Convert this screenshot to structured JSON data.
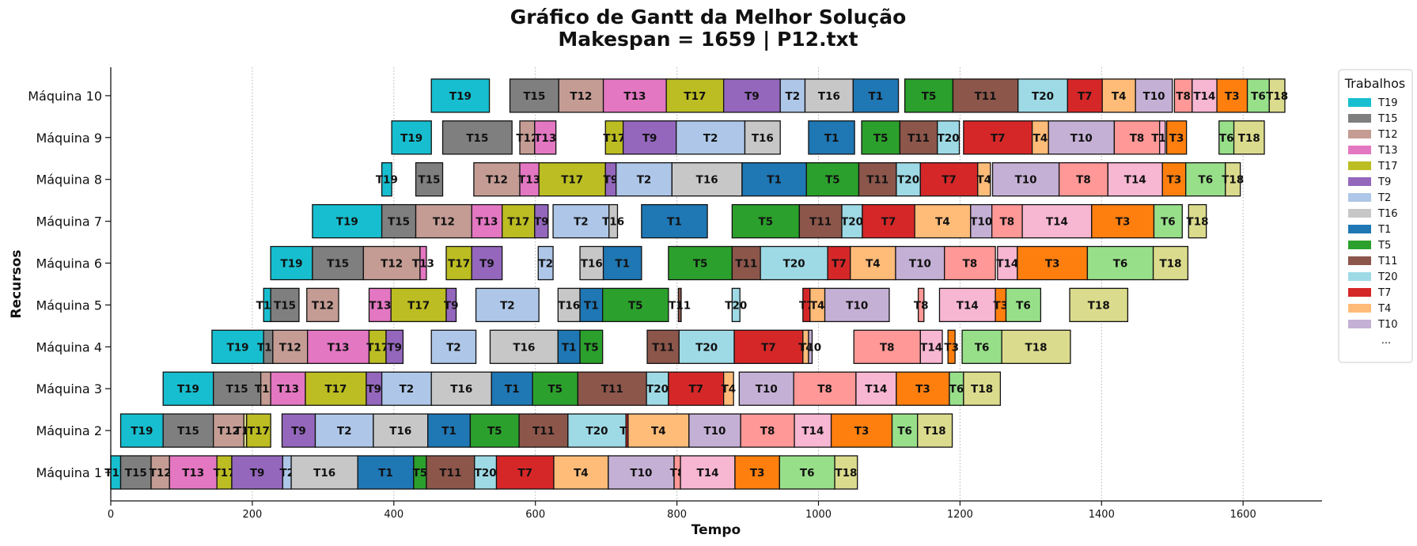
{
  "chart_data": {
    "type": "gantt",
    "title": "Gráfico de Gantt da Melhor Solução",
    "subtitle": "Makespan = 1659 | P12.txt",
    "xlabel": "Tempo",
    "ylabel": "Recursos",
    "xlim": [
      0,
      1710
    ],
    "x_ticks": [
      0,
      200,
      400,
      600,
      800,
      1000,
      1200,
      1400,
      1600
    ],
    "grid": "x dotted",
    "legend": {
      "title": "Trabalhos",
      "placement": "right",
      "entries": [
        "T19",
        "T15",
        "T12",
        "T13",
        "T17",
        "T9",
        "T2",
        "T16",
        "T1",
        "T5",
        "T11",
        "T20",
        "T7",
        "T4",
        "T10"
      ],
      "more": "..."
    },
    "colors": {
      "T19": "#17becf",
      "T15": "#7f7f7f",
      "T12": "#c49c94",
      "T13": "#e377c2",
      "T17": "#bcbd22",
      "T9": "#9467bd",
      "T2": "#aec7e8",
      "T16": "#c7c7c7",
      "T1": "#1f77b4",
      "T5": "#2ca02c",
      "T11": "#8c564b",
      "T20": "#9edae5",
      "T7": "#d62728",
      "T4": "#ffbb78",
      "T10": "#c5b0d5",
      "T8": "#ff9896",
      "T14": "#f7b6d2",
      "T3": "#ff7f0e",
      "T6": "#98df8a",
      "T18": "#dbdb8d"
    },
    "machines": [
      {
        "name": "Máquina 1",
        "tasks": [
          [
            "T19",
            0,
            14
          ],
          [
            "T15",
            14,
            57
          ],
          [
            "T12",
            57,
            83
          ],
          [
            "T13",
            83,
            150
          ],
          [
            "T17",
            150,
            171
          ],
          [
            "T9",
            171,
            243
          ],
          [
            "T2",
            243,
            255
          ],
          [
            "T16",
            255,
            349
          ],
          [
            "T1",
            349,
            428
          ],
          [
            "T5",
            428,
            446
          ],
          [
            "T11",
            446,
            514
          ],
          [
            "T20",
            514,
            545
          ],
          [
            "T7",
            545,
            626
          ],
          [
            "T4",
            626,
            703
          ],
          [
            "T10",
            703,
            796
          ],
          [
            "T8",
            796,
            805
          ],
          [
            "T14",
            805,
            882
          ],
          [
            "T3",
            882,
            945
          ],
          [
            "T6",
            945,
            1023
          ],
          [
            "T18",
            1023,
            1055
          ]
        ]
      },
      {
        "name": "Máquina 2",
        "tasks": [
          [
            "T19",
            14,
            74
          ],
          [
            "T15",
            74,
            145
          ],
          [
            "T12",
            145,
            188
          ],
          [
            "T18",
            188,
            192
          ],
          [
            "T17",
            192,
            226
          ],
          [
            "T9",
            242,
            289
          ],
          [
            "T2",
            289,
            371
          ],
          [
            "T16",
            371,
            448
          ],
          [
            "T1",
            448,
            508
          ],
          [
            "T5",
            508,
            577
          ],
          [
            "T11",
            577,
            646
          ],
          [
            "T20",
            646,
            728
          ],
          [
            "T7",
            728,
            731
          ],
          [
            "T4",
            731,
            817
          ],
          [
            "T10",
            817,
            890
          ],
          [
            "T8",
            890,
            966
          ],
          [
            "T14",
            966,
            1018
          ],
          [
            "T3",
            1018,
            1104
          ],
          [
            "T6",
            1104,
            1140
          ],
          [
            "T18",
            1140,
            1189
          ]
        ]
      },
      {
        "name": "Máquina 3",
        "tasks": [
          [
            "T19",
            74,
            145
          ],
          [
            "T15",
            145,
            212
          ],
          [
            "T12",
            212,
            226
          ],
          [
            "T13",
            226,
            275
          ],
          [
            "T17",
            275,
            361
          ],
          [
            "T9",
            361,
            383
          ],
          [
            "T2",
            383,
            453
          ],
          [
            "T16",
            453,
            538
          ],
          [
            "T1",
            538,
            596
          ],
          [
            "T5",
            596,
            660
          ],
          [
            "T11",
            660,
            757
          ],
          [
            "T20",
            757,
            788
          ],
          [
            "T7",
            788,
            866
          ],
          [
            "T4",
            866,
            880
          ],
          [
            "T10",
            888,
            965
          ],
          [
            "T8",
            965,
            1053
          ],
          [
            "T14",
            1053,
            1110
          ],
          [
            "T3",
            1110,
            1185
          ],
          [
            "T6",
            1185,
            1205
          ],
          [
            "T18",
            1205,
            1257
          ]
        ]
      },
      {
        "name": "Máquina 4",
        "tasks": [
          [
            "T19",
            143,
            216
          ],
          [
            "T15",
            216,
            229
          ],
          [
            "T12",
            229,
            278
          ],
          [
            "T13",
            278,
            365
          ],
          [
            "T17",
            365,
            389
          ],
          [
            "T9",
            389,
            413
          ],
          [
            "T2",
            453,
            516
          ],
          [
            "T16",
            536,
            632
          ],
          [
            "T1",
            632,
            663
          ],
          [
            "T5",
            663,
            695
          ],
          [
            "T11",
            758,
            803
          ],
          [
            "T20",
            803,
            881
          ],
          [
            "T7",
            881,
            978
          ],
          [
            "T4",
            978,
            986
          ],
          [
            "T10",
            986,
            991
          ],
          [
            "T8",
            1050,
            1144
          ],
          [
            "T14",
            1144,
            1175
          ],
          [
            "T3",
            1183,
            1193
          ],
          [
            "T6",
            1203,
            1259
          ],
          [
            "T18",
            1259,
            1356
          ]
        ]
      },
      {
        "name": "Máquina 5",
        "tasks": [
          [
            "T19",
            216,
            226
          ],
          [
            "T15",
            226,
            266
          ],
          [
            "T12",
            277,
            322
          ],
          [
            "T13",
            365,
            396
          ],
          [
            "T17",
            396,
            474
          ],
          [
            "T9",
            474,
            488
          ],
          [
            "T2",
            516,
            605
          ],
          [
            "T16",
            632,
            663
          ],
          [
            "T1",
            663,
            695
          ],
          [
            "T5",
            695,
            788
          ],
          [
            "T11",
            802,
            806
          ],
          [
            "T20",
            878,
            889
          ],
          [
            "T7",
            978,
            988
          ],
          [
            "T4",
            988,
            1009
          ],
          [
            "T10",
            1009,
            1100
          ],
          [
            "T8",
            1141,
            1149
          ],
          [
            "T14",
            1171,
            1250
          ],
          [
            "T3",
            1250,
            1265
          ],
          [
            "T6",
            1265,
            1314
          ],
          [
            "T18",
            1355,
            1437
          ]
        ]
      },
      {
        "name": "Máquina 6",
        "tasks": [
          [
            "T19",
            226,
            285
          ],
          [
            "T15",
            285,
            357
          ],
          [
            "T12",
            357,
            437
          ],
          [
            "T13",
            437,
            446
          ],
          [
            "T17",
            474,
            510
          ],
          [
            "T9",
            510,
            553
          ],
          [
            "T2",
            604,
            625
          ],
          [
            "T16",
            663,
            696
          ],
          [
            "T1",
            696,
            750
          ],
          [
            "T5",
            788,
            878
          ],
          [
            "T11",
            878,
            918
          ],
          [
            "T20",
            918,
            1013
          ],
          [
            "T7",
            1013,
            1045
          ],
          [
            "T4",
            1045,
            1109
          ],
          [
            "T10",
            1109,
            1178
          ],
          [
            "T8",
            1178,
            1250
          ],
          [
            "T14",
            1253,
            1281
          ],
          [
            "T3",
            1281,
            1380
          ],
          [
            "T6",
            1380,
            1473
          ],
          [
            "T18",
            1473,
            1522
          ]
        ]
      },
      {
        "name": "Máquina 7",
        "tasks": [
          [
            "T19",
            285,
            383
          ],
          [
            "T15",
            383,
            431
          ],
          [
            "T12",
            431,
            510
          ],
          [
            "T13",
            510,
            553
          ],
          [
            "T17",
            553,
            599
          ],
          [
            "T9",
            599,
            618
          ],
          [
            "T2",
            625,
            704
          ],
          [
            "T16",
            704,
            716
          ],
          [
            "T1",
            750,
            843
          ],
          [
            "T5",
            878,
            973
          ],
          [
            "T11",
            973,
            1033
          ],
          [
            "T20",
            1033,
            1062
          ],
          [
            "T7",
            1062,
            1136
          ],
          [
            "T4",
            1136,
            1215
          ],
          [
            "T10",
            1215,
            1245
          ],
          [
            "T8",
            1245,
            1288
          ],
          [
            "T14",
            1288,
            1386
          ],
          [
            "T3",
            1386,
            1474
          ],
          [
            "T6",
            1474,
            1514
          ],
          [
            "T18",
            1523,
            1548
          ]
        ]
      },
      {
        "name": "Máquina 8",
        "tasks": [
          [
            "T19",
            383,
            397
          ],
          [
            "T15",
            431,
            469
          ],
          [
            "T12",
            513,
            578
          ],
          [
            "T13",
            578,
            605
          ],
          [
            "T17",
            605,
            699
          ],
          [
            "T9",
            699,
            714
          ],
          [
            "T2",
            714,
            793
          ],
          [
            "T16",
            793,
            892
          ],
          [
            "T1",
            892,
            983
          ],
          [
            "T5",
            983,
            1057
          ],
          [
            "T11",
            1057,
            1110
          ],
          [
            "T20",
            1110,
            1144
          ],
          [
            "T7",
            1144,
            1225
          ],
          [
            "T4",
            1225,
            1243
          ],
          [
            "T10",
            1246,
            1340
          ],
          [
            "T8",
            1340,
            1409
          ],
          [
            "T14",
            1409,
            1486
          ],
          [
            "T3",
            1486,
            1519
          ],
          [
            "T6",
            1519,
            1575
          ],
          [
            "T18",
            1575,
            1596
          ]
        ]
      },
      {
        "name": "Máquina 9",
        "tasks": [
          [
            "T19",
            397,
            453
          ],
          [
            "T15",
            469,
            567
          ],
          [
            "T12",
            578,
            599
          ],
          [
            "T13",
            599,
            629
          ],
          [
            "T17",
            699,
            724
          ],
          [
            "T9",
            724,
            799
          ],
          [
            "T2",
            799,
            896
          ],
          [
            "T16",
            896,
            946
          ],
          [
            "T1",
            986,
            1051
          ],
          [
            "T5",
            1061,
            1115
          ],
          [
            "T11",
            1115,
            1168
          ],
          [
            "T20",
            1168,
            1199
          ],
          [
            "T7",
            1205,
            1302
          ],
          [
            "T4",
            1302,
            1325
          ],
          [
            "T10",
            1325,
            1418
          ],
          [
            "T8",
            1418,
            1482
          ],
          [
            "T14",
            1482,
            1490
          ],
          [
            "T3",
            1492,
            1520
          ],
          [
            "T6",
            1566,
            1587
          ],
          [
            "T18",
            1587,
            1630
          ]
        ]
      },
      {
        "name": "Máquina 10",
        "tasks": [
          [
            "T19",
            453,
            535
          ],
          [
            "T15",
            564,
            633
          ],
          [
            "T12",
            633,
            696
          ],
          [
            "T13",
            696,
            785
          ],
          [
            "T17",
            785,
            866
          ],
          [
            "T9",
            866,
            946
          ],
          [
            "T2",
            946,
            981
          ],
          [
            "T16",
            981,
            1049
          ],
          [
            "T1",
            1049,
            1113
          ],
          [
            "T5",
            1122,
            1190
          ],
          [
            "T11",
            1190,
            1282
          ],
          [
            "T20",
            1282,
            1352
          ],
          [
            "T7",
            1352,
            1401
          ],
          [
            "T4",
            1401,
            1448
          ],
          [
            "T10",
            1448,
            1500
          ],
          [
            "T8",
            1503,
            1528
          ],
          [
            "T14",
            1528,
            1563
          ],
          [
            "T3",
            1563,
            1606
          ],
          [
            "T6",
            1606,
            1637
          ],
          [
            "T18",
            1637,
            1659
          ]
        ]
      }
    ]
  }
}
